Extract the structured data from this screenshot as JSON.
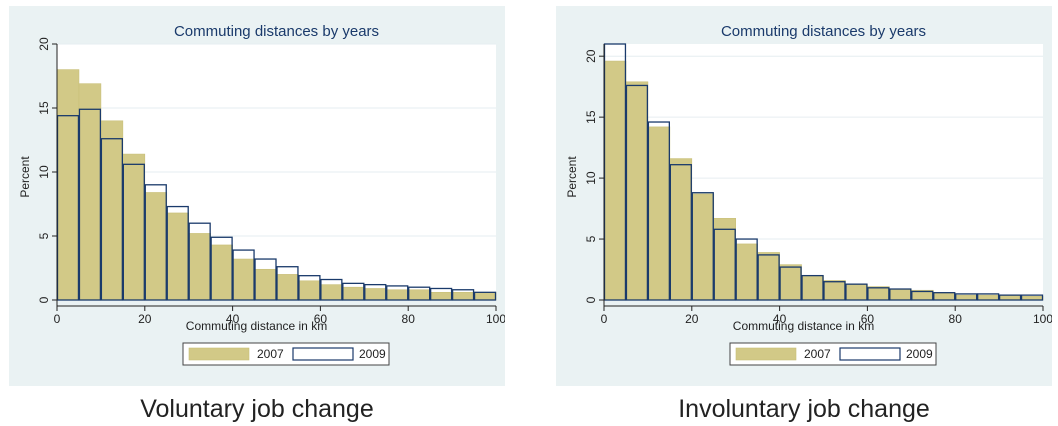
{
  "colors": {
    "panel_bg": "#eaf2f3",
    "bar_2007": "#d2c987",
    "bar_2007_edge": "#c8bf78",
    "bar_2009_edge": "#1a3a6b",
    "title_color": "#1a3a6b"
  },
  "chart_data": [
    {
      "type": "bar",
      "title": "Commuting distances by years",
      "caption": "Voluntary job change",
      "xlabel": "Commuting distance in km",
      "ylabel": "Percent",
      "xlim": [
        0,
        100
      ],
      "ylim": [
        0,
        20
      ],
      "xticks": [
        "0",
        "20",
        "40",
        "60",
        "80",
        "100"
      ],
      "yticks": [
        "0",
        "5",
        "10",
        "15",
        "20"
      ],
      "bin_width": 5,
      "bins_start": [
        0,
        5,
        10,
        15,
        20,
        25,
        30,
        35,
        40,
        45,
        50,
        55,
        60,
        65,
        70,
        75,
        80,
        85,
        90,
        95
      ],
      "legend": [
        "2007",
        "2009"
      ],
      "series": [
        {
          "name": "2007",
          "style": "filled",
          "values": [
            18.0,
            16.9,
            14.0,
            11.4,
            8.4,
            6.8,
            5.2,
            4.3,
            3.2,
            2.4,
            2.0,
            1.5,
            1.2,
            1.0,
            0.9,
            0.8,
            0.8,
            0.6,
            0.6,
            0.6
          ]
        },
        {
          "name": "2009",
          "style": "outline",
          "values": [
            14.4,
            14.9,
            12.6,
            10.6,
            9.0,
            7.3,
            6.0,
            4.9,
            3.9,
            3.2,
            2.6,
            1.9,
            1.6,
            1.3,
            1.2,
            1.1,
            1.0,
            0.9,
            0.8,
            0.6
          ]
        }
      ]
    },
    {
      "type": "bar",
      "title": "Commuting distances by years",
      "caption": "Involuntary job change",
      "xlabel": "Commuting distance in km",
      "ylabel": "Percent",
      "xlim": [
        0,
        100
      ],
      "ylim": [
        0,
        21
      ],
      "xticks": [
        "0",
        "20",
        "40",
        "60",
        "80",
        "100"
      ],
      "yticks": [
        "0",
        "5",
        "10",
        "15",
        "20"
      ],
      "bin_width": 5,
      "bins_start": [
        0,
        5,
        10,
        15,
        20,
        25,
        30,
        35,
        40,
        45,
        50,
        55,
        60,
        65,
        70,
        75,
        80,
        85,
        90,
        95
      ],
      "legend": [
        "2007",
        "2009"
      ],
      "series": [
        {
          "name": "2007",
          "style": "filled",
          "values": [
            19.6,
            17.9,
            14.2,
            11.6,
            8.7,
            6.7,
            4.6,
            3.9,
            2.9,
            2.0,
            1.6,
            1.3,
            1.1,
            0.9,
            0.8,
            0.6,
            0.4,
            0.4,
            0.4,
            0.3
          ]
        },
        {
          "name": "2009",
          "style": "outline",
          "values": [
            21.0,
            17.6,
            14.6,
            11.1,
            8.8,
            5.8,
            5.0,
            3.7,
            2.7,
            2.0,
            1.5,
            1.3,
            1.0,
            0.9,
            0.7,
            0.6,
            0.5,
            0.5,
            0.4,
            0.4
          ]
        }
      ]
    }
  ]
}
